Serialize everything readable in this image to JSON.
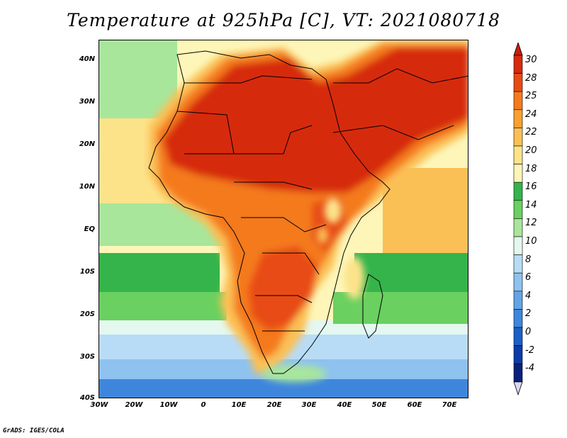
{
  "title": "Temperature at 925hPa [C], VT: 2021080718",
  "y_ticks": [
    "40N",
    "30N",
    "20N",
    "10N",
    "EQ",
    "10S",
    "20S",
    "30S",
    "40S"
  ],
  "x_ticks": [
    "30W",
    "20W",
    "10W",
    "0",
    "10E",
    "20E",
    "30E",
    "40E",
    "50E",
    "60E",
    "70E"
  ],
  "colorbar": {
    "labels": [
      "30",
      "28",
      "25",
      "24",
      "22",
      "20",
      "18",
      "16",
      "14",
      "12",
      "10",
      "8",
      "6",
      "4",
      "2",
      "0",
      "-2",
      "-4"
    ],
    "colors": [
      "#d62a0e",
      "#e84b14",
      "#f47a1c",
      "#f8a030",
      "#fbc055",
      "#fce38a",
      "#fdf6b8",
      "#34b44a",
      "#6ad05f",
      "#a8e69b",
      "#e4f8f0",
      "#b8dcf6",
      "#8ec2ef",
      "#62a4e6",
      "#3e86dc",
      "#1c5fc8",
      "#0a3ca8",
      "#08207a"
    ],
    "overflow_high": "#c81e0a",
    "overflow_low": "#d8d8f2"
  },
  "footer": "GrADS: IGES/COLA"
}
